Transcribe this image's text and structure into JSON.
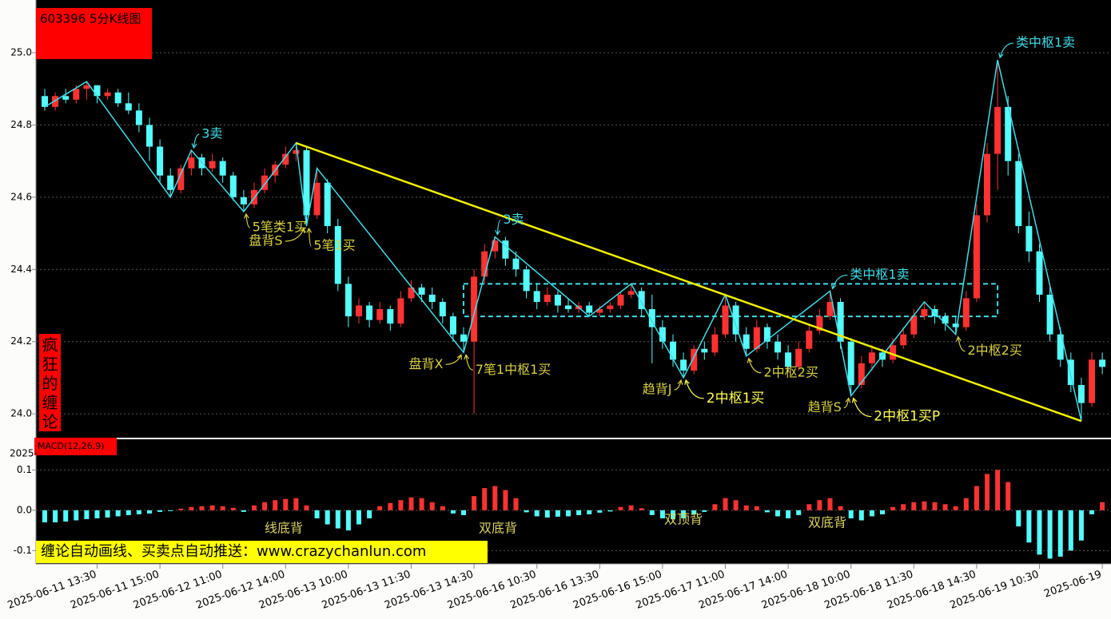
{
  "chart_data": [
    {
      "type": "candlestick",
      "title": "603396 5分K线图",
      "side_label": "疯狂的缠论",
      "banner": "缠论自动画线、买卖点自动推送：www.crazychanlun.com",
      "up_color": "#ff3232",
      "down_color": "#54fcfc",
      "grid": true,
      "ylim": [
        23.934,
        25.146
      ],
      "yticks": [
        {
          "value": 24,
          "label": "24.0"
        },
        24.2,
        24.4,
        24.6,
        24.8,
        {
          "value": 25,
          "label": "25.0"
        }
      ],
      "categories": [
        null,
        null,
        null,
        null,
        null,
        "2025-06-11 13:30",
        null,
        null,
        null,
        null,
        null,
        "2025-06-11 15:00",
        null,
        null,
        null,
        null,
        null,
        "2025-06-12 11:00",
        null,
        null,
        null,
        null,
        null,
        "2025-06-12 14:00",
        null,
        null,
        null,
        null,
        null,
        "2025-06-13 10:00",
        null,
        null,
        null,
        null,
        null,
        "2025-06-13 11:30",
        null,
        null,
        null,
        null,
        null,
        "2025-06-13 14:30",
        null,
        null,
        null,
        null,
        null,
        "2025-06-16 10:30",
        null,
        null,
        null,
        null,
        null,
        "2025-06-16 13:30",
        null,
        null,
        null,
        null,
        null,
        "2025-06-16 15:00",
        null,
        null,
        null,
        null,
        null,
        "2025-06-17 11:00",
        null,
        null,
        null,
        null,
        null,
        "2025-06-17 14:00",
        null,
        null,
        null,
        null,
        null,
        "2025-06-18 10:00",
        null,
        null,
        null,
        null,
        null,
        "2025-06-18 11:30",
        null,
        null,
        null,
        null,
        null,
        "2025-06-18 14:30",
        null,
        null,
        null,
        null,
        null,
        "2025-06-19 10:30",
        null,
        null,
        null,
        null,
        null,
        "2025-06-19"
      ],
      "ohlc": [
        [
          24.88,
          24.9,
          24.84,
          24.85
        ],
        [
          24.85,
          24.89,
          24.84,
          24.88
        ],
        [
          24.88,
          24.9,
          24.86,
          24.87
        ],
        [
          24.87,
          24.91,
          24.86,
          24.9
        ],
        [
          24.9,
          24.92,
          24.87,
          24.91
        ],
        [
          24.91,
          24.91,
          24.86,
          24.88
        ],
        [
          24.88,
          24.9,
          24.87,
          24.89
        ],
        [
          24.89,
          24.9,
          24.85,
          24.86
        ],
        [
          24.86,
          24.89,
          24.83,
          24.84
        ],
        [
          24.84,
          24.86,
          24.78,
          24.8
        ],
        [
          24.8,
          24.82,
          24.7,
          24.74
        ],
        [
          24.74,
          24.76,
          24.64,
          24.66
        ],
        [
          24.66,
          24.68,
          24.6,
          24.62
        ],
        [
          24.62,
          24.69,
          24.61,
          24.68
        ],
        [
          24.68,
          24.73,
          24.66,
          24.71
        ],
        [
          24.71,
          24.72,
          24.66,
          24.68
        ],
        [
          24.68,
          24.72,
          24.67,
          24.7
        ],
        [
          24.7,
          24.71,
          24.64,
          24.66
        ],
        [
          24.66,
          24.67,
          24.59,
          24.6
        ],
        [
          24.6,
          24.62,
          24.56,
          24.58
        ],
        [
          24.58,
          24.64,
          24.57,
          24.62
        ],
        [
          24.62,
          24.68,
          24.61,
          24.66
        ],
        [
          24.66,
          24.7,
          24.64,
          24.69
        ],
        [
          24.69,
          24.74,
          24.68,
          24.72
        ],
        [
          24.72,
          24.75,
          24.7,
          24.73
        ],
        [
          24.73,
          24.74,
          24.52,
          24.55
        ],
        [
          24.55,
          24.68,
          24.54,
          24.64
        ],
        [
          24.64,
          24.65,
          24.5,
          24.52
        ],
        [
          24.52,
          24.54,
          24.34,
          24.36
        ],
        [
          24.36,
          24.38,
          24.24,
          24.27
        ],
        [
          24.27,
          24.32,
          24.25,
          24.3
        ],
        [
          24.3,
          24.31,
          24.24,
          24.26
        ],
        [
          24.26,
          24.31,
          24.25,
          24.29
        ],
        [
          24.29,
          24.3,
          24.23,
          24.25
        ],
        [
          24.25,
          24.34,
          24.24,
          24.32
        ],
        [
          24.32,
          24.37,
          24.31,
          24.35
        ],
        [
          24.35,
          24.36,
          24.31,
          24.33
        ],
        [
          24.33,
          24.35,
          24.29,
          24.31
        ],
        [
          24.31,
          24.32,
          24.25,
          24.27
        ],
        [
          24.27,
          24.28,
          24.2,
          24.22
        ],
        [
          24.22,
          24.24,
          24.17,
          24.2
        ],
        [
          24.2,
          24.4,
          24.0,
          24.38
        ],
        [
          24.38,
          24.47,
          24.36,
          24.45
        ],
        [
          24.45,
          24.49,
          24.43,
          24.48
        ],
        [
          24.48,
          24.49,
          24.41,
          24.43
        ],
        [
          24.43,
          24.45,
          24.38,
          24.4
        ],
        [
          24.4,
          24.41,
          24.32,
          24.34
        ],
        [
          24.34,
          24.36,
          24.29,
          24.31
        ],
        [
          24.31,
          24.35,
          24.3,
          24.33
        ],
        [
          24.33,
          24.34,
          24.28,
          24.3
        ],
        [
          24.3,
          24.32,
          24.28,
          24.29
        ],
        [
          24.29,
          24.31,
          24.28,
          24.3
        ],
        [
          24.3,
          24.31,
          24.27,
          24.28
        ],
        [
          24.28,
          24.3,
          24.27,
          24.29
        ],
        [
          24.29,
          24.31,
          24.28,
          24.3
        ],
        [
          24.3,
          24.34,
          24.29,
          24.33
        ],
        [
          24.33,
          24.36,
          24.32,
          24.34
        ],
        [
          24.34,
          24.35,
          24.27,
          24.29
        ],
        [
          24.29,
          24.33,
          24.14,
          24.24
        ],
        [
          24.24,
          24.26,
          24.18,
          24.2
        ],
        [
          24.2,
          24.22,
          24.13,
          24.15
        ],
        [
          24.15,
          24.17,
          24.1,
          24.12
        ],
        [
          24.12,
          24.19,
          24.11,
          24.18
        ],
        [
          24.18,
          24.2,
          24.15,
          24.17
        ],
        [
          24.17,
          24.24,
          24.16,
          24.22
        ],
        [
          24.22,
          24.33,
          24.21,
          24.3
        ],
        [
          24.3,
          24.31,
          24.2,
          24.22
        ],
        [
          24.22,
          24.24,
          24.16,
          24.18
        ],
        [
          24.18,
          24.26,
          24.17,
          24.24
        ],
        [
          24.24,
          24.25,
          24.18,
          24.2
        ],
        [
          24.2,
          24.22,
          24.15,
          24.17
        ],
        [
          24.17,
          24.19,
          24.12,
          24.13
        ],
        [
          24.13,
          24.2,
          24.12,
          24.18
        ],
        [
          24.18,
          24.25,
          24.17,
          24.23
        ],
        [
          24.23,
          24.29,
          24.22,
          24.27
        ],
        [
          24.27,
          24.34,
          24.26,
          24.31
        ],
        [
          24.31,
          24.32,
          24.18,
          24.2
        ],
        [
          24.2,
          24.21,
          24.05,
          24.08
        ],
        [
          24.08,
          24.16,
          24.07,
          24.14
        ],
        [
          24.14,
          24.19,
          24.12,
          24.17
        ],
        [
          24.17,
          24.18,
          24.13,
          24.15
        ],
        [
          24.15,
          24.21,
          24.14,
          24.19
        ],
        [
          24.19,
          24.24,
          24.18,
          24.22
        ],
        [
          24.22,
          24.29,
          24.21,
          24.27
        ],
        [
          24.27,
          24.31,
          24.26,
          24.29
        ],
        [
          24.29,
          24.3,
          24.25,
          24.27
        ],
        [
          24.27,
          24.28,
          24.23,
          24.25
        ],
        [
          24.25,
          24.27,
          24.22,
          24.24
        ],
        [
          24.24,
          24.34,
          24.23,
          24.32
        ],
        [
          24.32,
          24.58,
          24.31,
          24.55
        ],
        [
          24.55,
          24.75,
          24.53,
          24.72
        ],
        [
          24.72,
          24.98,
          24.62,
          24.85
        ],
        [
          24.85,
          24.88,
          24.66,
          24.7
        ],
        [
          24.7,
          24.72,
          24.5,
          24.52
        ],
        [
          24.52,
          24.56,
          24.42,
          24.45
        ],
        [
          24.45,
          24.47,
          24.31,
          24.33
        ],
        [
          24.33,
          24.35,
          24.2,
          24.22
        ],
        [
          24.22,
          24.24,
          24.13,
          24.15
        ],
        [
          24.15,
          24.17,
          24.06,
          24.08
        ],
        [
          24.08,
          24.1,
          23.98,
          24.03
        ],
        [
          24.03,
          24.17,
          24.02,
          24.15
        ],
        [
          24.15,
          24.17,
          24.11,
          24.13
        ]
      ],
      "strokes": {
        "color": "#40dce8",
        "x": [
          0,
          4,
          12,
          14,
          19,
          24,
          25,
          26,
          40,
          43,
          52,
          56,
          61,
          65,
          67,
          75,
          77,
          84,
          87,
          91,
          99
        ],
        "y": [
          24.85,
          24.92,
          24.6,
          24.73,
          24.56,
          24.75,
          24.52,
          24.68,
          24.17,
          24.49,
          24.27,
          24.36,
          24.1,
          24.33,
          24.16,
          24.34,
          24.05,
          24.31,
          24.22,
          24.98,
          23.98
        ]
      },
      "trendline": {
        "color": "#f0f000",
        "x": [
          24,
          99
        ],
        "y": [
          24.75,
          23.98
        ]
      },
      "pivot_box": {
        "color": "#40dce8",
        "x": [
          40,
          91
        ],
        "y": [
          24.27,
          24.36
        ]
      },
      "annotations": [
        {
          "text": "3卖",
          "index": 14,
          "price": 24.73,
          "color": "#40dce8"
        },
        {
          "text": "5笔类1买",
          "index": 19,
          "price": 24.56,
          "color": "#d8d040"
        },
        {
          "text": "盘背S",
          "index": 25,
          "price": 24.52,
          "color": "#d8d040"
        },
        {
          "text": "5笔1买",
          "index": 25,
          "price": 24.52,
          "color": "#d8d040"
        },
        {
          "text": "3卖",
          "index": 43,
          "price": 24.49,
          "color": "#40dce8"
        },
        {
          "text": "盘背X",
          "index": 40,
          "price": 24.17,
          "color": "#d8d040"
        },
        {
          "text": "7笔1中枢1买",
          "index": 40,
          "price": 24.17,
          "color": "#d8d040"
        },
        {
          "text": "趋背J",
          "index": 61,
          "price": 24.1,
          "color": "#d8d040"
        },
        {
          "text": "2中枢1买",
          "index": 61,
          "price": 24.1,
          "color": "#ffff50"
        },
        {
          "text": "2中枢2买",
          "index": 67,
          "price": 24.16,
          "color": "#d8d040"
        },
        {
          "text": "类中枢1卖",
          "index": 75,
          "price": 24.34,
          "color": "#40dce8"
        },
        {
          "text": "趋背S",
          "index": 77,
          "price": 24.05,
          "color": "#d8d040"
        },
        {
          "text": "2中枢1买P",
          "index": 77,
          "price": 24.05,
          "color": "#ffff50"
        },
        {
          "text": "2中枢2买",
          "index": 87,
          "price": 24.22,
          "color": "#d8d040"
        },
        {
          "text": "类中枢1卖",
          "index": 91,
          "price": 24.98,
          "color": "#40dce8"
        }
      ]
    },
    {
      "type": "bar",
      "title": "MACD(12,26,9)",
      "corner_label": "2025-",
      "up_color": "#ff3232",
      "down_color": "#54fcfc",
      "grid": true,
      "ylim": [
        -0.133,
        0.176
      ],
      "yticks": [
        -0.1,
        {
          "value": 0,
          "label": "0.0"
        },
        0.1
      ],
      "values": [
        -0.03,
        -0.03,
        -0.028,
        -0.025,
        -0.022,
        -0.02,
        -0.018,
        -0.015,
        -0.012,
        -0.01,
        -0.008,
        -0.004,
        -0.002,
        0.004,
        0.008,
        0.01,
        0.012,
        0.01,
        0.006,
        -0.004,
        0.012,
        0.02,
        0.025,
        0.028,
        0.03,
        0.012,
        -0.02,
        -0.035,
        -0.045,
        -0.05,
        -0.035,
        -0.02,
        0.01,
        0.018,
        0.025,
        0.032,
        0.03,
        0.02,
        0.01,
        -0.008,
        -0.012,
        0.035,
        0.055,
        0.06,
        0.05,
        0.03,
        -0.005,
        -0.015,
        -0.018,
        -0.016,
        -0.015,
        -0.012,
        -0.01,
        -0.006,
        -0.003,
        0.008,
        0.012,
        0.005,
        -0.012,
        -0.02,
        -0.022,
        -0.02,
        -0.01,
        -0.004,
        0.015,
        0.03,
        0.025,
        0.012,
        0.01,
        -0.005,
        -0.015,
        -0.02,
        -0.012,
        0.015,
        0.025,
        0.03,
        0.01,
        -0.02,
        -0.025,
        -0.015,
        -0.01,
        0.008,
        0.015,
        0.02,
        0.022,
        0.02,
        0.015,
        0.01,
        0.03,
        0.06,
        0.09,
        0.1,
        0.07,
        -0.04,
        -0.08,
        -0.11,
        -0.12,
        -0.115,
        -0.1,
        -0.075,
        -0.01,
        0.02
      ],
      "annotations": [
        "线底背",
        "双底背",
        "双顶背",
        "双底背"
      ],
      "annotation_color": "#d8d060"
    }
  ]
}
